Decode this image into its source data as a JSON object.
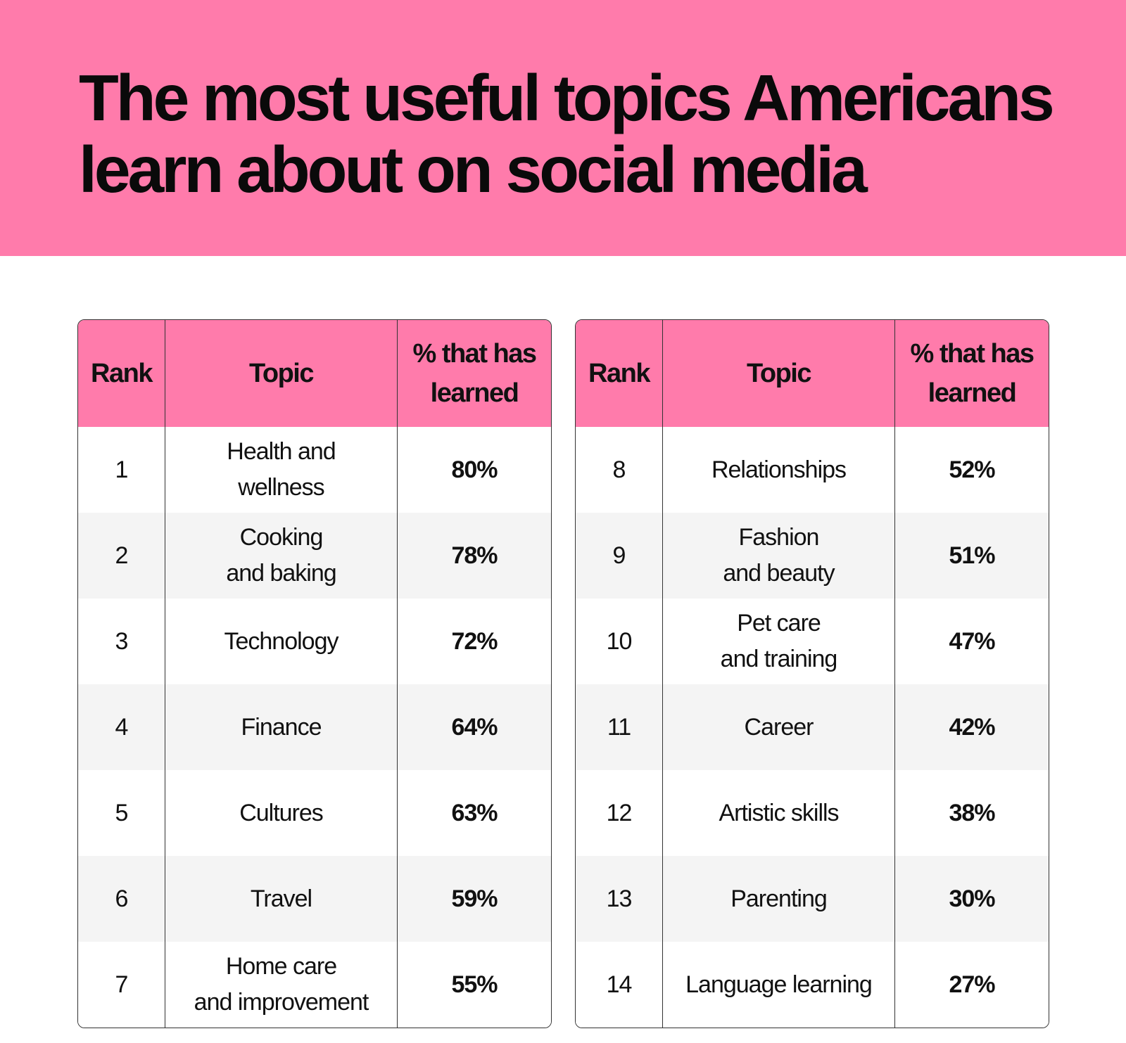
{
  "title_lines": [
    "The most useful topics Americans",
    "learn about on social media"
  ],
  "colors": {
    "accent": "#ff7bab",
    "stripe": "#f4f4f4",
    "border": "#333333"
  },
  "chart_data": {
    "type": "table",
    "title": "The most useful topics Americans learn about on social media",
    "columns": [
      "Rank",
      "Topic",
      "% that has learned"
    ],
    "rows": [
      {
        "rank": "1",
        "topic": "Health and\nwellness",
        "percent": "80%",
        "value": 80
      },
      {
        "rank": "2",
        "topic": "Cooking\nand baking",
        "percent": "78%",
        "value": 78
      },
      {
        "rank": "3",
        "topic": "Technology",
        "percent": "72%",
        "value": 72
      },
      {
        "rank": "4",
        "topic": "Finance",
        "percent": "64%",
        "value": 64
      },
      {
        "rank": "5",
        "topic": "Cultures",
        "percent": "63%",
        "value": 63
      },
      {
        "rank": "6",
        "topic": "Travel",
        "percent": "59%",
        "value": 59
      },
      {
        "rank": "7",
        "topic": "Home care\nand improvement",
        "percent": "55%",
        "value": 55
      },
      {
        "rank": "8",
        "topic": "Relationships",
        "percent": "52%",
        "value": 52
      },
      {
        "rank": "9",
        "topic": "Fashion\nand beauty",
        "percent": "51%",
        "value": 51
      },
      {
        "rank": "10",
        "topic": "Pet care\nand training",
        "percent": "47%",
        "value": 47
      },
      {
        "rank": "11",
        "topic": "Career",
        "percent": "42%",
        "value": 42
      },
      {
        "rank": "12",
        "topic": "Artistic skills",
        "percent": "38%",
        "value": 38
      },
      {
        "rank": "13",
        "topic": "Parenting",
        "percent": "30%",
        "value": 30
      },
      {
        "rank": "14",
        "topic": "Language learning",
        "percent": "27%",
        "value": 27
      }
    ]
  },
  "headers": {
    "rank": "Rank",
    "topic": "Topic",
    "percent_line1": "% that has",
    "percent_line2": "learned"
  }
}
